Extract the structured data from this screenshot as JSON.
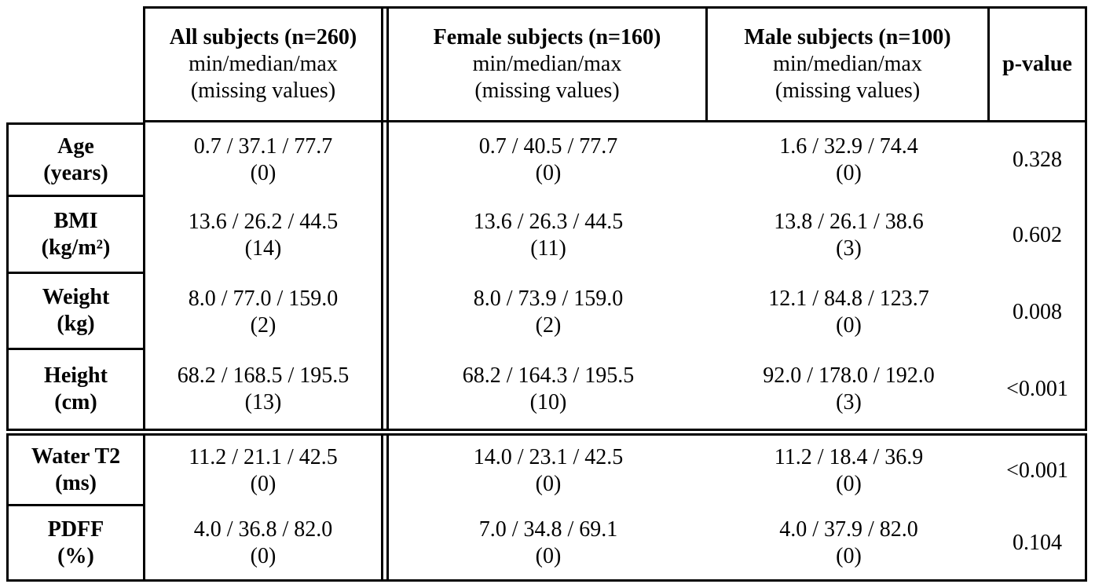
{
  "columns": {
    "all": {
      "title": "All subjects (n=260)",
      "sub1": "min/median/max",
      "sub2": "(missing values)"
    },
    "female": {
      "title": "Female subjects (n=160)",
      "sub1": "min/median/max",
      "sub2": "(missing values)"
    },
    "male": {
      "title": "Male subjects (n=100)",
      "sub1": "min/median/max",
      "sub2": "(missing values)"
    },
    "p": {
      "title": "p-value"
    }
  },
  "rows": [
    {
      "label": "Age",
      "unit": "(years)",
      "all": "0.7 / 37.1 / 77.7",
      "all_miss": "(0)",
      "female": "0.7 / 40.5 / 77.7",
      "female_miss": "(0)",
      "male": "1.6 / 32.9 / 74.4",
      "male_miss": "(0)",
      "p": "0.328"
    },
    {
      "label": "BMI",
      "unit": "(kg/m²)",
      "all": "13.6 / 26.2 / 44.5",
      "all_miss": "(14)",
      "female": "13.6 / 26.3 / 44.5",
      "female_miss": "(11)",
      "male": "13.8 / 26.1 / 38.6",
      "male_miss": "(3)",
      "p": "0.602"
    },
    {
      "label": "Weight",
      "unit": "(kg)",
      "all": "8.0 / 77.0 / 159.0",
      "all_miss": "(2)",
      "female": "8.0 / 73.9 / 159.0",
      "female_miss": "(2)",
      "male": "12.1 / 84.8 / 123.7",
      "male_miss": "(0)",
      "p": "0.008"
    },
    {
      "label": "Height",
      "unit": "(cm)",
      "all": "68.2 / 168.5 / 195.5",
      "all_miss": "(13)",
      "female": "68.2 / 164.3 / 195.5",
      "female_miss": "(10)",
      "male": "92.0 / 178.0 / 192.0",
      "male_miss": "(3)",
      "p": "<0.001"
    },
    {
      "label": "Water T2",
      "unit": "(ms)",
      "all": "11.2 / 21.1 / 42.5",
      "all_miss": "(0)",
      "female": "14.0 / 23.1 / 42.5",
      "female_miss": "(0)",
      "male": "11.2 / 18.4 / 36.9",
      "male_miss": "(0)",
      "p": "<0.001"
    },
    {
      "label": "PDFF",
      "unit": "(%)",
      "all": "4.0 / 36.8 / 82.0",
      "all_miss": "(0)",
      "female": "7.0 / 34.8 / 69.1",
      "female_miss": "(0)",
      "male": "4.0 / 37.9 / 82.0",
      "male_miss": "(0)",
      "p": "0.104"
    }
  ]
}
